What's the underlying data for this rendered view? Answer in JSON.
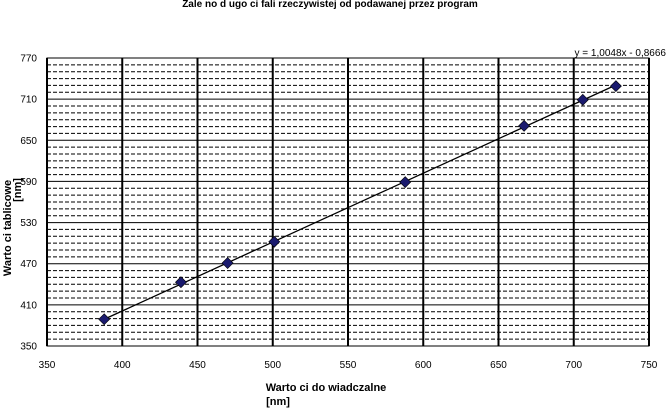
{
  "chart_data": {
    "type": "scatter",
    "title": "Zale  no     d ugo   ci fali rzeczywistej od podawanej przez program",
    "xlabel": "Warto  ci do  wiadczalne",
    "xlabel_unit": "[nm]",
    "ylabel": "Warto  ci tablicowe",
    "ylabel_unit": "[nm]",
    "xlim": [
      350,
      750
    ],
    "ylim": [
      350,
      770
    ],
    "x_ticks": [
      350,
      400,
      450,
      500,
      550,
      600,
      650,
      700,
      750
    ],
    "y_ticks": [
      350,
      410,
      470,
      530,
      590,
      650,
      710,
      770
    ],
    "minor_y_step": 10,
    "grid": true,
    "marker_color": "#1a1a6e",
    "trendline_color": "#000000",
    "series": [
      {
        "x": [
          388,
          439,
          470,
          501,
          588,
          667,
          706,
          728
        ],
        "y": [
          389,
          443,
          471,
          502,
          589,
          671,
          709,
          729
        ]
      }
    ],
    "trendline": {
      "slope": 1.0048,
      "intercept": -0.8666,
      "label": "y = 1,0048x - 0,8666"
    }
  }
}
